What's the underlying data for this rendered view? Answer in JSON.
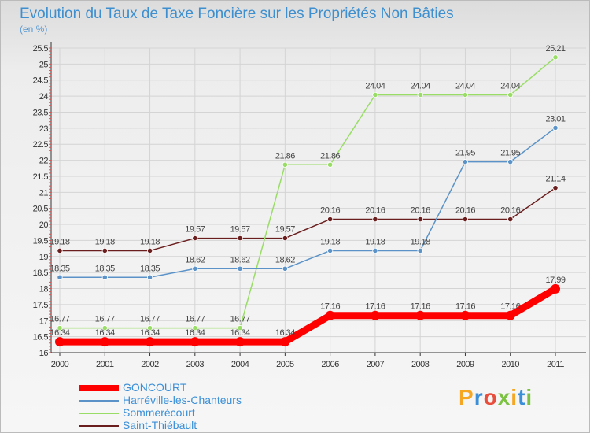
{
  "title": "Evolution du Taux de Taxe Foncière sur les Propriétés Non Bâties",
  "unit_label": "(en %)",
  "logo": {
    "text": "Proxiti",
    "letter_colors": [
      "#f5a623",
      "#3a8fd8",
      "#e94e3d",
      "#7cc242",
      "#f5a623",
      "#3a8fd8",
      "#7cc242"
    ]
  },
  "chart_data": {
    "type": "line",
    "x": [
      "2000",
      "2001",
      "2002",
      "2003",
      "2004",
      "2005",
      "2006",
      "2007",
      "2008",
      "2009",
      "2010",
      "2011"
    ],
    "ylim": [
      16,
      25.5
    ],
    "yticks": [
      "16",
      "16.5",
      "17",
      "17.5",
      "18",
      "18.5",
      "19",
      "19.5",
      "20",
      "20.5",
      "21",
      "21.5",
      "22",
      "22.5",
      "23",
      "23.5",
      "24",
      "24.5",
      "25",
      "25.5"
    ],
    "series": [
      {
        "name": "Saint-Thiébault",
        "color": "#6b1e1e",
        "values": [
          19.18,
          19.18,
          19.18,
          19.57,
          19.57,
          19.57,
          20.16,
          20.16,
          20.16,
          20.16,
          20.16,
          21.14
        ],
        "labels": [
          "19.18",
          "19.18",
          "19.18",
          "19.57",
          "19.57",
          "19.57",
          "20.16",
          "20.16",
          "20.16",
          "20.16",
          "20.16",
          "21.14"
        ]
      },
      {
        "name": "Sommerécourt",
        "color": "#99dd66",
        "values": [
          16.77,
          16.77,
          16.77,
          16.77,
          16.77,
          21.86,
          21.86,
          24.04,
          24.04,
          24.04,
          24.04,
          25.21
        ],
        "labels": [
          "16.77",
          "16.77",
          "16.77",
          "16.77",
          "16.77",
          "21.86",
          "21.86",
          "24.04",
          "24.04",
          "24.04",
          "24.04",
          "25.21"
        ]
      },
      {
        "name": "Harréville-les-Chanteurs",
        "color": "#5b93c8",
        "values": [
          18.35,
          18.35,
          18.35,
          18.62,
          18.62,
          18.62,
          19.18,
          19.18,
          19.18,
          21.95,
          21.95,
          23.01
        ],
        "labels": [
          "18.35",
          "18.35",
          "18.35",
          "18.62",
          "18.62",
          "18.62",
          "19.18",
          "19.18",
          "19.18",
          "21.95",
          "21.95",
          "23.01"
        ]
      },
      {
        "name": "GONCOURT",
        "color": "#ff0000",
        "values": [
          16.34,
          16.34,
          16.34,
          16.34,
          16.34,
          16.34,
          17.16,
          17.16,
          17.16,
          17.16,
          17.16,
          17.99
        ],
        "labels": [
          "16.34",
          "16.34",
          "16.34",
          "16.34",
          "16.34",
          "16.34",
          "17.16",
          "17.16",
          "17.16",
          "17.16",
          "17.16",
          "17.99"
        ]
      }
    ],
    "legend": [
      "GONCOURT",
      "Harréville-les-Chanteurs",
      "Sommerécourt",
      "Saint-Thiébault"
    ],
    "legend_position": "bottom-left"
  }
}
